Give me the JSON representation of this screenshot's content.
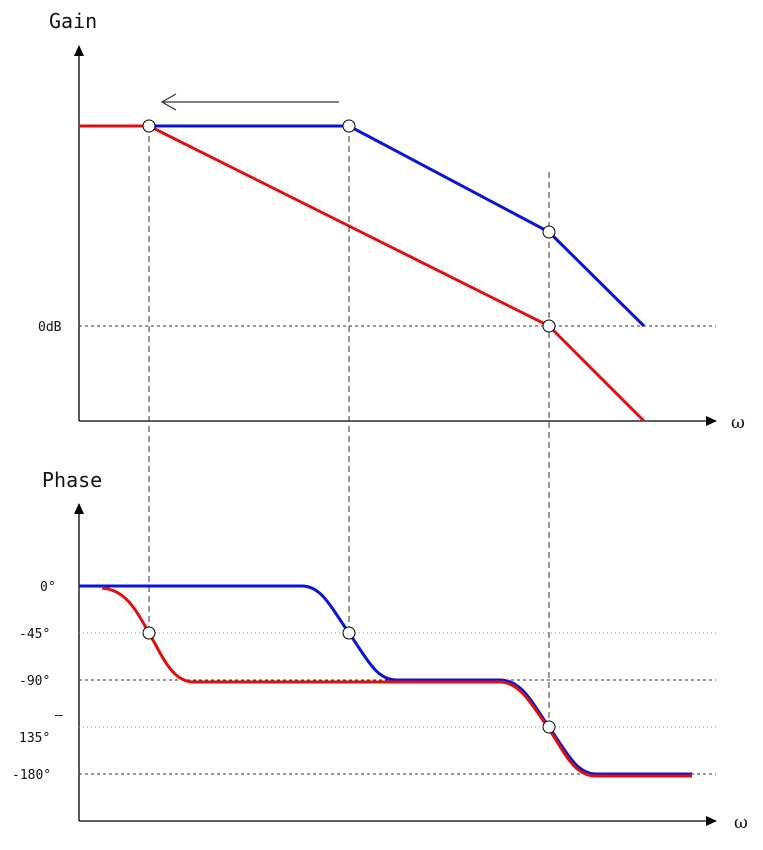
{
  "gain": {
    "title": "Gain",
    "zero_label": "0dB",
    "omega_label": "ω"
  },
  "phase": {
    "title": "Phase",
    "ticks": {
      "p0": "0°",
      "p45": "-45°",
      "p90": "-90°",
      "p135_dash": "‒",
      "p135": "135°",
      "p180": "-180°"
    },
    "omega_label": "ω"
  },
  "colors": {
    "blue": "#0a14d2",
    "red": "#e01010",
    "arrow": "#333333"
  }
}
